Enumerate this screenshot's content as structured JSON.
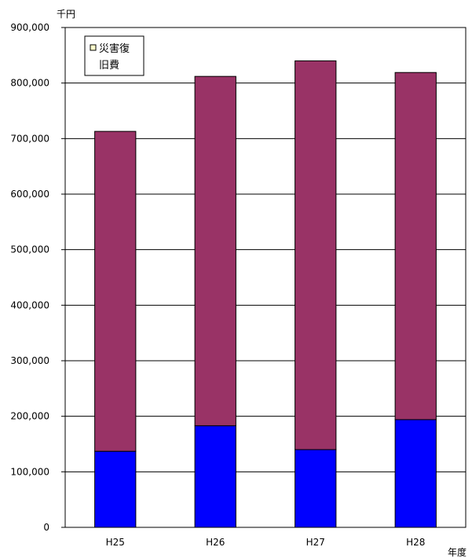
{
  "chart_data": {
    "type": "bar",
    "stacked": true,
    "y_unit": "千円",
    "x_unit": "年度",
    "categories": [
      "H25",
      "H26",
      "H27",
      "H28"
    ],
    "series": [
      {
        "name": "",
        "color": "#0000ff",
        "values": [
          137000,
          183000,
          140000,
          194000
        ]
      },
      {
        "name": "災害復旧費",
        "color": "#993366",
        "values": [
          576000,
          629000,
          700000,
          625000
        ]
      }
    ],
    "ylim": [
      0,
      900000
    ],
    "yticks": [
      "0",
      "100,000",
      "200,000",
      "300,000",
      "400,000",
      "500,000",
      "600,000",
      "700,000",
      "800,000",
      "900,000"
    ],
    "grid": true,
    "legend": {
      "placement": "top-left",
      "lines": [
        "災害復",
        "旧費"
      ],
      "swatch_color": "#ffffcc"
    }
  }
}
